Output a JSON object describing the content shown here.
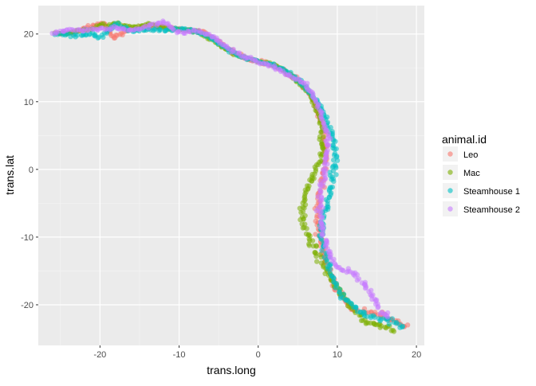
{
  "chart_data": {
    "type": "scatter",
    "title": "",
    "xlabel": "trans.long",
    "ylabel": "trans.lat",
    "xlim": [
      -27.8,
      21.0
    ],
    "ylim": [
      -26.0,
      24.2
    ],
    "x_ticks": [
      -20,
      -10,
      0,
      10,
      20
    ],
    "y_ticks": [
      -20,
      -10,
      0,
      10,
      20
    ],
    "grid": true,
    "legend_position": "right",
    "legend_title": "animal.id",
    "series": [
      {
        "name": "Leo",
        "color": "#F8766D",
        "path": [
          [
            -25.5,
            20.0
          ],
          [
            -23,
            20.3
          ],
          [
            -21,
            21.2
          ],
          [
            -19.5,
            21.6
          ],
          [
            -18.3,
            19.3
          ],
          [
            -17,
            20.4
          ],
          [
            -15,
            21.0
          ],
          [
            -13,
            21.2
          ],
          [
            -11,
            20.9
          ],
          [
            -9,
            20.6
          ],
          [
            -7,
            20.3
          ],
          [
            -5,
            18.8
          ],
          [
            -3,
            17.2
          ],
          [
            -1,
            16.2
          ],
          [
            1,
            15.8
          ],
          [
            3,
            14.8
          ],
          [
            5,
            13.2
          ],
          [
            6.5,
            11.2
          ],
          [
            7.5,
            8.8
          ],
          [
            8.3,
            6.0
          ],
          [
            8.6,
            3.0
          ],
          [
            8.4,
            0.0
          ],
          [
            7.9,
            -3.0
          ],
          [
            7.4,
            -6.0
          ],
          [
            7.6,
            -9.0
          ],
          [
            8.3,
            -12.0
          ],
          [
            9.0,
            -15.0
          ],
          [
            10.0,
            -18.0
          ],
          [
            11.8,
            -20.5
          ],
          [
            13.5,
            -21.0
          ],
          [
            15.5,
            -21.5
          ],
          [
            17.5,
            -22.5
          ],
          [
            19.0,
            -23.5
          ]
        ],
        "values_note": ""
      },
      {
        "name": "Mac",
        "color": "#7CAE00",
        "path": [
          [
            -25.5,
            20.0
          ],
          [
            -23,
            20.4
          ],
          [
            -21,
            20.7
          ],
          [
            -20,
            21.3
          ],
          [
            -18,
            21.5
          ],
          [
            -16,
            21.0
          ],
          [
            -14,
            21.4
          ],
          [
            -12,
            21.0
          ],
          [
            -10,
            20.6
          ],
          [
            -8,
            20.4
          ],
          [
            -6,
            19.3
          ],
          [
            -4,
            17.6
          ],
          [
            -2,
            16.6
          ],
          [
            0,
            16.0
          ],
          [
            2,
            15.4
          ],
          [
            4,
            14.0
          ],
          [
            6,
            12.0
          ],
          [
            7.2,
            9.5
          ],
          [
            8.0,
            6.5
          ],
          [
            8.2,
            3.0
          ],
          [
            7.4,
            0.0
          ],
          [
            6.2,
            -3.0
          ],
          [
            5.6,
            -6.0
          ],
          [
            5.9,
            -9.0
          ],
          [
            7.2,
            -12.0
          ],
          [
            8.6,
            -15.0
          ],
          [
            10.2,
            -18.0
          ],
          [
            12.0,
            -20.5
          ],
          [
            13.5,
            -22.5
          ],
          [
            15.5,
            -23.0
          ],
          [
            17.5,
            -23.8
          ]
        ],
        "values_note": ""
      },
      {
        "name": "Steamhouse 1",
        "color": "#00BFC4",
        "path": [
          [
            -25.5,
            20.0
          ],
          [
            -23,
            19.8
          ],
          [
            -21,
            20.0
          ],
          [
            -20,
            19.5
          ],
          [
            -18,
            21.6
          ],
          [
            -16,
            20.4
          ],
          [
            -14,
            20.7
          ],
          [
            -12,
            20.6
          ],
          [
            -10,
            20.8
          ],
          [
            -8,
            20.5
          ],
          [
            -6,
            19.5
          ],
          [
            -4,
            17.8
          ],
          [
            -2,
            16.5
          ],
          [
            0,
            16.0
          ],
          [
            2,
            15.4
          ],
          [
            4,
            14.2
          ],
          [
            6,
            12.2
          ],
          [
            7.5,
            9.8
          ],
          [
            8.6,
            7.5
          ],
          [
            9.4,
            5.0
          ],
          [
            9.8,
            2.0
          ],
          [
            9.5,
            -1.0
          ],
          [
            9.0,
            -4.0
          ],
          [
            8.2,
            -7.0
          ],
          [
            8.0,
            -10.0
          ],
          [
            8.6,
            -13.0
          ],
          [
            9.5,
            -16.0
          ],
          [
            10.8,
            -19.0
          ],
          [
            12.8,
            -21.0
          ],
          [
            15.0,
            -22.0
          ],
          [
            17.0,
            -22.5
          ],
          [
            18.5,
            -23.5
          ]
        ],
        "values_note": ""
      },
      {
        "name": "Steamhouse 2",
        "color": "#C77CFF",
        "path": [
          [
            -26,
            20.0
          ],
          [
            -24,
            20.6
          ],
          [
            -22,
            20.6
          ],
          [
            -20,
            20.8
          ],
          [
            -18,
            20.9
          ],
          [
            -16,
            20.6
          ],
          [
            -14,
            21.0
          ],
          [
            -12,
            21.8
          ],
          [
            -10,
            20.2
          ],
          [
            -8,
            20.5
          ],
          [
            -6,
            19.8
          ],
          [
            -4,
            18.0
          ],
          [
            -2,
            16.8
          ],
          [
            0,
            16.0
          ],
          [
            2,
            15.2
          ],
          [
            4,
            13.8
          ],
          [
            6,
            12.6
          ],
          [
            7.2,
            10.5
          ],
          [
            8.0,
            8.0
          ],
          [
            8.6,
            5.5
          ],
          [
            8.8,
            2.5
          ],
          [
            8.4,
            -0.5
          ],
          [
            8.0,
            -3.5
          ],
          [
            7.8,
            -6.5
          ],
          [
            8.2,
            -9.5
          ],
          [
            9.0,
            -12.5
          ],
          [
            10.0,
            -14.5
          ],
          [
            12.0,
            -15.5
          ],
          [
            13.5,
            -17.0
          ],
          [
            14.5,
            -19.0
          ],
          [
            15.5,
            -21.0
          ],
          [
            16.5,
            -22.0
          ]
        ],
        "values_note": ""
      }
    ]
  }
}
